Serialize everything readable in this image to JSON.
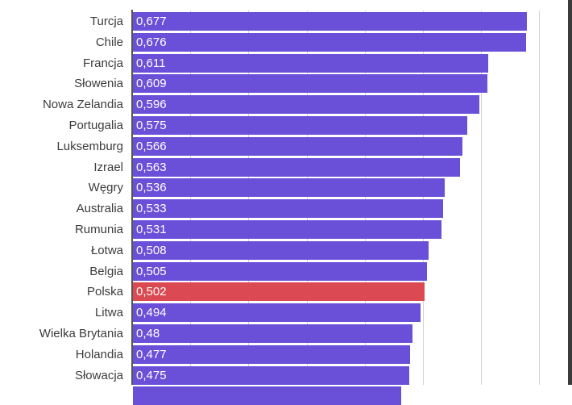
{
  "chart_data": {
    "type": "bar",
    "orientation": "horizontal",
    "title": "",
    "xlabel": "",
    "ylabel": "",
    "xlim": [
      0,
      0.7
    ],
    "grid": true,
    "gridline_step": 0.1,
    "legend": null,
    "categories": [
      "Turcja",
      "Chile",
      "Francja",
      "Słowenia",
      "Nowa Zelandia",
      "Portugalia",
      "Luksemburg",
      "Izrael",
      "Węgry",
      "Australia",
      "Rumunia",
      "Łotwa",
      "Belgia",
      "Polska",
      "Litwa",
      "Wielka Brytania",
      "Holandia",
      "Słowacja"
    ],
    "values": [
      0.677,
      0.676,
      0.611,
      0.609,
      0.596,
      0.575,
      0.566,
      0.563,
      0.536,
      0.533,
      0.531,
      0.508,
      0.505,
      0.502,
      0.494,
      0.48,
      0.477,
      0.475
    ],
    "value_labels": [
      "0,677",
      "0,676",
      "0,611",
      "0,609",
      "0,596",
      "0,575",
      "0,566",
      "0,563",
      "0,536",
      "0,533",
      "0,531",
      "0,508",
      "0,505",
      "0,502",
      "0,494",
      "0,48",
      "0,477",
      "0,475"
    ],
    "highlighted_category": "Polska",
    "colors": {
      "default_bar": "#6a50d8",
      "highlight_bar": "#db4a52",
      "value_text": "#ffffff",
      "label_text": "#3c3c3c",
      "gridline": "#d2d2d2",
      "axis": "#555555"
    }
  }
}
